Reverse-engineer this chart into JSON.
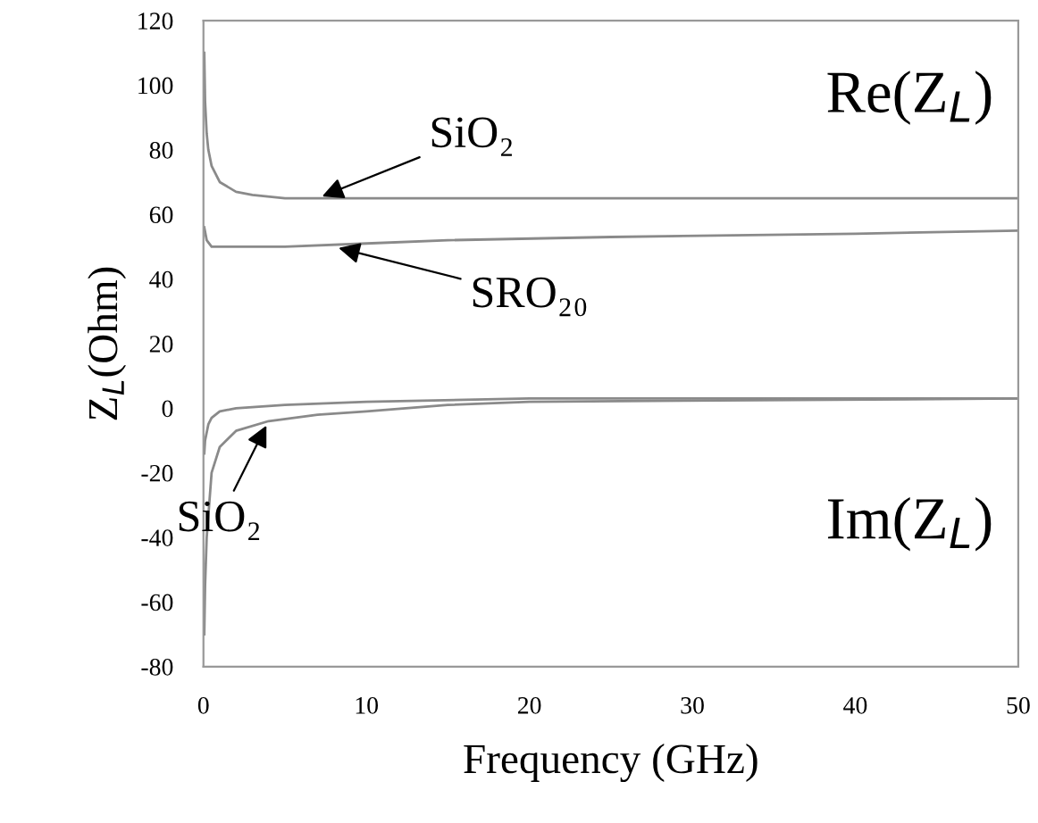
{
  "chart_data": {
    "type": "line",
    "xlabel": "Frequency (GHz)",
    "ylabel": "Z$_{L}$(Ohm)",
    "xlim": [
      0,
      50
    ],
    "ylim": [
      -80,
      120
    ],
    "xticks": [
      0,
      10,
      20,
      30,
      40,
      50
    ],
    "yticks": [
      -80,
      -60,
      -40,
      -20,
      0,
      20,
      40,
      60,
      80,
      100,
      120
    ],
    "grid": false,
    "legend": false,
    "marker": "none",
    "line_style": "solid",
    "series": [
      {
        "color": "#8a8a8a",
        "x": [
          0.05,
          0.1,
          0.2,
          0.3,
          0.5,
          1,
          2,
          3,
          5,
          10,
          20,
          30,
          40,
          50
        ],
        "values": [
          110,
          95,
          85,
          80,
          75,
          70,
          67,
          66,
          65,
          65,
          65,
          65,
          65,
          65
        ]
      },
      {
        "color": "#8a8a8a",
        "x": [
          0.05,
          0.2,
          0.5,
          1,
          5,
          10,
          15,
          25,
          40,
          50
        ],
        "values": [
          56,
          52,
          50,
          50,
          50,
          51,
          52,
          53,
          54,
          55
        ]
      },
      {
        "color": "#8a8a8a",
        "x": [
          0.05,
          0.1,
          0.3,
          0.5,
          1,
          2,
          5,
          10,
          20,
          50
        ],
        "values": [
          -14,
          -10,
          -5,
          -3,
          -1,
          0,
          1,
          2,
          3,
          3
        ]
      },
      {
        "color": "#8a8a8a",
        "x": [
          0.05,
          0.1,
          0.2,
          0.5,
          1,
          2,
          4,
          7,
          10,
          15,
          20,
          50
        ],
        "values": [
          -70,
          -55,
          -40,
          -20,
          -12,
          -7,
          -4,
          -2,
          -1,
          1,
          2,
          3
        ]
      }
    ],
    "annotations": [
      "Re(Z$_{L}$)",
      "Im(Z$_{L}$)",
      {
        "text": "SiO₂",
        "x": 7,
        "y": 65
      },
      {
        "text": "SRO₂₀",
        "x": 8,
        "y": 50
      },
      {
        "text": "SiO₂",
        "x": 4,
        "y": -4
      }
    ]
  }
}
